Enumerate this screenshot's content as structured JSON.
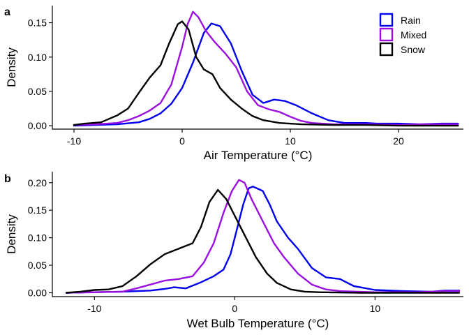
{
  "colors": {
    "Rain": "#0000ee",
    "Mixed": "#9b10e0",
    "Snow": "#000000"
  },
  "legend": {
    "position": "top-right",
    "entries": [
      "Rain",
      "Mixed",
      "Snow"
    ]
  },
  "chart_data": [
    {
      "type": "line",
      "panel": "a",
      "xlabel": "Air Temperature (°C)",
      "ylabel": "Density",
      "xlim": [
        -12,
        26
      ],
      "ylim": [
        -0.005,
        0.175
      ],
      "xticks": [
        -10,
        0,
        10,
        20
      ],
      "yticks": [
        0.0,
        0.05,
        0.1,
        0.15
      ],
      "ytick_labels": [
        "0.00",
        "0.05",
        "0.10",
        "0.15"
      ],
      "grid": false,
      "series": [
        {
          "name": "Rain",
          "points": [
            [
              -10,
              0.0
            ],
            [
              -8,
              0.001
            ],
            [
              -6,
              0.002
            ],
            [
              -4,
              0.005
            ],
            [
              -3,
              0.01
            ],
            [
              -2,
              0.018
            ],
            [
              -1,
              0.032
            ],
            [
              0,
              0.055
            ],
            [
              1,
              0.092
            ],
            [
              2,
              0.135
            ],
            [
              2.7,
              0.149
            ],
            [
              3.5,
              0.145
            ],
            [
              4.5,
              0.12
            ],
            [
              5.5,
              0.08
            ],
            [
              6.5,
              0.045
            ],
            [
              7.5,
              0.033
            ],
            [
              8.5,
              0.038
            ],
            [
              9.5,
              0.036
            ],
            [
              10.5,
              0.03
            ],
            [
              12,
              0.018
            ],
            [
              13.5,
              0.008
            ],
            [
              15,
              0.004
            ],
            [
              17,
              0.004
            ],
            [
              18,
              0.003
            ],
            [
              20,
              0.003
            ],
            [
              22,
              0.002
            ],
            [
              24,
              0.003
            ],
            [
              25.5,
              0.003
            ]
          ]
        },
        {
          "name": "Mixed",
          "points": [
            [
              -10,
              0.001
            ],
            [
              -8,
              0.002
            ],
            [
              -6,
              0.004
            ],
            [
              -5,
              0.008
            ],
            [
              -4,
              0.014
            ],
            [
              -3,
              0.022
            ],
            [
              -2,
              0.033
            ],
            [
              -1,
              0.06
            ],
            [
              0,
              0.115
            ],
            [
              0.5,
              0.148
            ],
            [
              1,
              0.166
            ],
            [
              1.5,
              0.158
            ],
            [
              2.2,
              0.138
            ],
            [
              3,
              0.122
            ],
            [
              4,
              0.105
            ],
            [
              5,
              0.085
            ],
            [
              6,
              0.05
            ],
            [
              7,
              0.03
            ],
            [
              8,
              0.024
            ],
            [
              9,
              0.02
            ],
            [
              10,
              0.013
            ],
            [
              11,
              0.007
            ],
            [
              12,
              0.004
            ],
            [
              14,
              0.002
            ],
            [
              17,
              0.002
            ],
            [
              20,
              0.001
            ],
            [
              22,
              0.002
            ],
            [
              25.5,
              0.002
            ]
          ]
        },
        {
          "name": "Snow",
          "points": [
            [
              -10,
              0.001
            ],
            [
              -9,
              0.003
            ],
            [
              -7.5,
              0.005
            ],
            [
              -6,
              0.015
            ],
            [
              -5,
              0.025
            ],
            [
              -4,
              0.048
            ],
            [
              -3,
              0.07
            ],
            [
              -2,
              0.088
            ],
            [
              -1.2,
              0.12
            ],
            [
              -0.4,
              0.148
            ],
            [
              0,
              0.152
            ],
            [
              0.6,
              0.14
            ],
            [
              1.3,
              0.1
            ],
            [
              2,
              0.082
            ],
            [
              2.8,
              0.075
            ],
            [
              3.5,
              0.055
            ],
            [
              4.5,
              0.038
            ],
            [
              5.5,
              0.025
            ],
            [
              6.5,
              0.014
            ],
            [
              7.5,
              0.008
            ],
            [
              9,
              0.004
            ],
            [
              11,
              0.002
            ],
            [
              14,
              0.001
            ],
            [
              17,
              0.001
            ],
            [
              20,
              0.0
            ],
            [
              25.5,
              0.0
            ]
          ]
        }
      ]
    },
    {
      "type": "line",
      "panel": "b",
      "xlabel": "Wet Bulb Temperature (°C)",
      "ylabel": "Density",
      "xlim": [
        -13,
        16.3
      ],
      "ylim": [
        -0.007,
        0.22
      ],
      "xticks": [
        -10,
        0,
        10
      ],
      "yticks": [
        0.0,
        0.05,
        0.1,
        0.15,
        0.2
      ],
      "ytick_labels": [
        "0.00",
        "0.05",
        "0.10",
        "0.15",
        "0.20"
      ],
      "grid": false,
      "series": [
        {
          "name": "Rain",
          "points": [
            [
              -12,
              0.0
            ],
            [
              -10,
              0.001
            ],
            [
              -8,
              0.002
            ],
            [
              -6,
              0.004
            ],
            [
              -5,
              0.007
            ],
            [
              -4.3,
              0.01
            ],
            [
              -3.5,
              0.008
            ],
            [
              -2.5,
              0.018
            ],
            [
              -1.5,
              0.03
            ],
            [
              -0.8,
              0.042
            ],
            [
              -0.3,
              0.07
            ],
            [
              0.2,
              0.12
            ],
            [
              0.6,
              0.16
            ],
            [
              1,
              0.19
            ],
            [
              1.3,
              0.193
            ],
            [
              2,
              0.185
            ],
            [
              2.5,
              0.16
            ],
            [
              3,
              0.13
            ],
            [
              3.8,
              0.1
            ],
            [
              4.5,
              0.08
            ],
            [
              5.5,
              0.045
            ],
            [
              6.5,
              0.028
            ],
            [
              7.5,
              0.025
            ],
            [
              8.5,
              0.012
            ],
            [
              10,
              0.005
            ],
            [
              12,
              0.003
            ],
            [
              14,
              0.002
            ],
            [
              15,
              0.004
            ],
            [
              16,
              0.004
            ]
          ]
        },
        {
          "name": "Mixed",
          "points": [
            [
              -12,
              0.0
            ],
            [
              -10,
              0.001
            ],
            [
              -8,
              0.002
            ],
            [
              -7,
              0.008
            ],
            [
              -6,
              0.015
            ],
            [
              -5,
              0.022
            ],
            [
              -4,
              0.025
            ],
            [
              -3,
              0.03
            ],
            [
              -2.2,
              0.055
            ],
            [
              -1.5,
              0.09
            ],
            [
              -0.8,
              0.145
            ],
            [
              -0.2,
              0.185
            ],
            [
              0.3,
              0.205
            ],
            [
              0.7,
              0.2
            ],
            [
              1.2,
              0.17
            ],
            [
              2,
              0.13
            ],
            [
              2.8,
              0.09
            ],
            [
              3.5,
              0.065
            ],
            [
              4.5,
              0.035
            ],
            [
              5.5,
              0.015
            ],
            [
              6.5,
              0.006
            ],
            [
              7.5,
              0.003
            ],
            [
              10,
              0.001
            ],
            [
              13,
              0.001
            ],
            [
              15,
              0.003
            ],
            [
              16,
              0.003
            ]
          ]
        },
        {
          "name": "Snow",
          "points": [
            [
              -12,
              0.0
            ],
            [
              -11,
              0.002
            ],
            [
              -10,
              0.005
            ],
            [
              -9,
              0.006
            ],
            [
              -8,
              0.012
            ],
            [
              -7,
              0.03
            ],
            [
              -6,
              0.052
            ],
            [
              -5,
              0.07
            ],
            [
              -4,
              0.08
            ],
            [
              -3,
              0.09
            ],
            [
              -2.4,
              0.12
            ],
            [
              -1.8,
              0.165
            ],
            [
              -1.2,
              0.187
            ],
            [
              -0.6,
              0.17
            ],
            [
              0,
              0.14
            ],
            [
              0.8,
              0.1
            ],
            [
              1.5,
              0.065
            ],
            [
              2.3,
              0.035
            ],
            [
              3,
              0.018
            ],
            [
              4,
              0.006
            ],
            [
              5,
              0.002
            ],
            [
              6,
              0.001
            ],
            [
              9,
              0.0
            ],
            [
              16,
              0.0
            ]
          ]
        }
      ]
    }
  ]
}
